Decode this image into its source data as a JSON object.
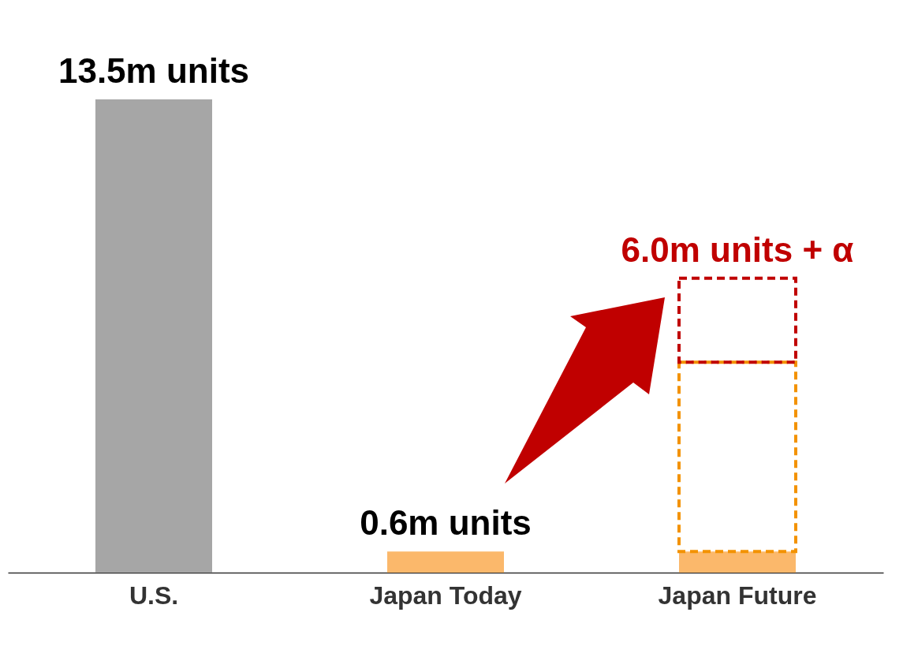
{
  "chart_data": {
    "type": "bar",
    "stacked": true,
    "categories": [
      "U.S.",
      "Japan Today",
      "Japan Future"
    ],
    "series": [
      {
        "colors": [
          "#a6a6a6",
          "#fbb86b",
          "#fbb86b"
        ],
        "values": [
          13.5,
          0.6,
          0.6
        ],
        "value_labels": [
          "13.5m units",
          "0.6m units",
          null
        ]
      },
      {
        "color": "#f39200",
        "line_style": "dashed",
        "values": [
          null,
          null,
          5.4
        ],
        "value_labels": [
          null,
          null,
          null
        ]
      },
      {
        "color": "#c00000",
        "line_style": "dashed",
        "values": [
          null,
          null,
          2.4
        ],
        "value_labels": [
          null,
          null,
          null
        ]
      }
    ],
    "annotations": [
      {
        "text": "6.0m units + α",
        "x": "Japan Future",
        "y": 8.4
      }
    ]
  }
}
